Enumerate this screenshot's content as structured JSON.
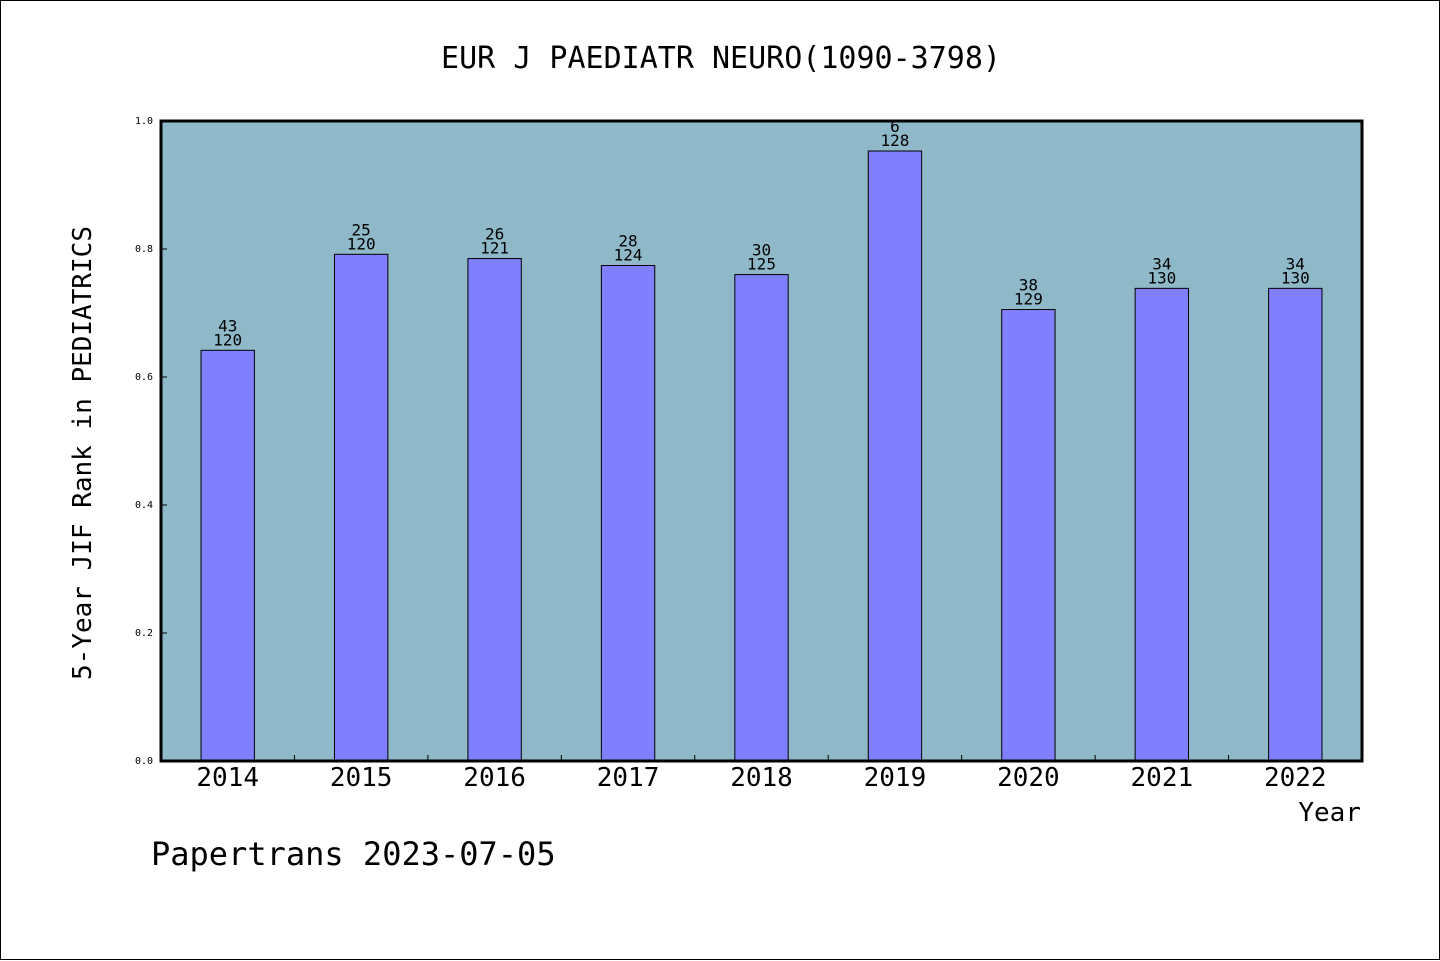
{
  "chart_data": {
    "type": "bar",
    "title": "EUR J PAEDIATR NEURO(1090-3798)",
    "xlabel": "Year",
    "ylabel": "5-Year JIF Rank in PEDIATRICS",
    "ylim": [
      0,
      1.0
    ],
    "yticks": [
      "0.0",
      "0.2",
      "0.4",
      "0.6",
      "0.8",
      "1.0"
    ],
    "categories": [
      "2014",
      "2015",
      "2016",
      "2017",
      "2018",
      "2019",
      "2020",
      "2021",
      "2022"
    ],
    "values": [
      0.6417,
      0.7917,
      0.7851,
      0.7742,
      0.76,
      0.9531,
      0.7054,
      0.7385,
      0.7385
    ],
    "rank": [
      "43",
      "25",
      "26",
      "28",
      "30",
      "6",
      "38",
      "34",
      "34"
    ],
    "total": [
      "120",
      "120",
      "121",
      "124",
      "125",
      "128",
      "129",
      "130",
      "130"
    ],
    "grid": false
  },
  "footer": "Papertrans 2023-07-05",
  "colors": {
    "plot_bg": "#8fb8c8",
    "bar_fill": "#8080ff",
    "bar_stroke": "#000000"
  }
}
